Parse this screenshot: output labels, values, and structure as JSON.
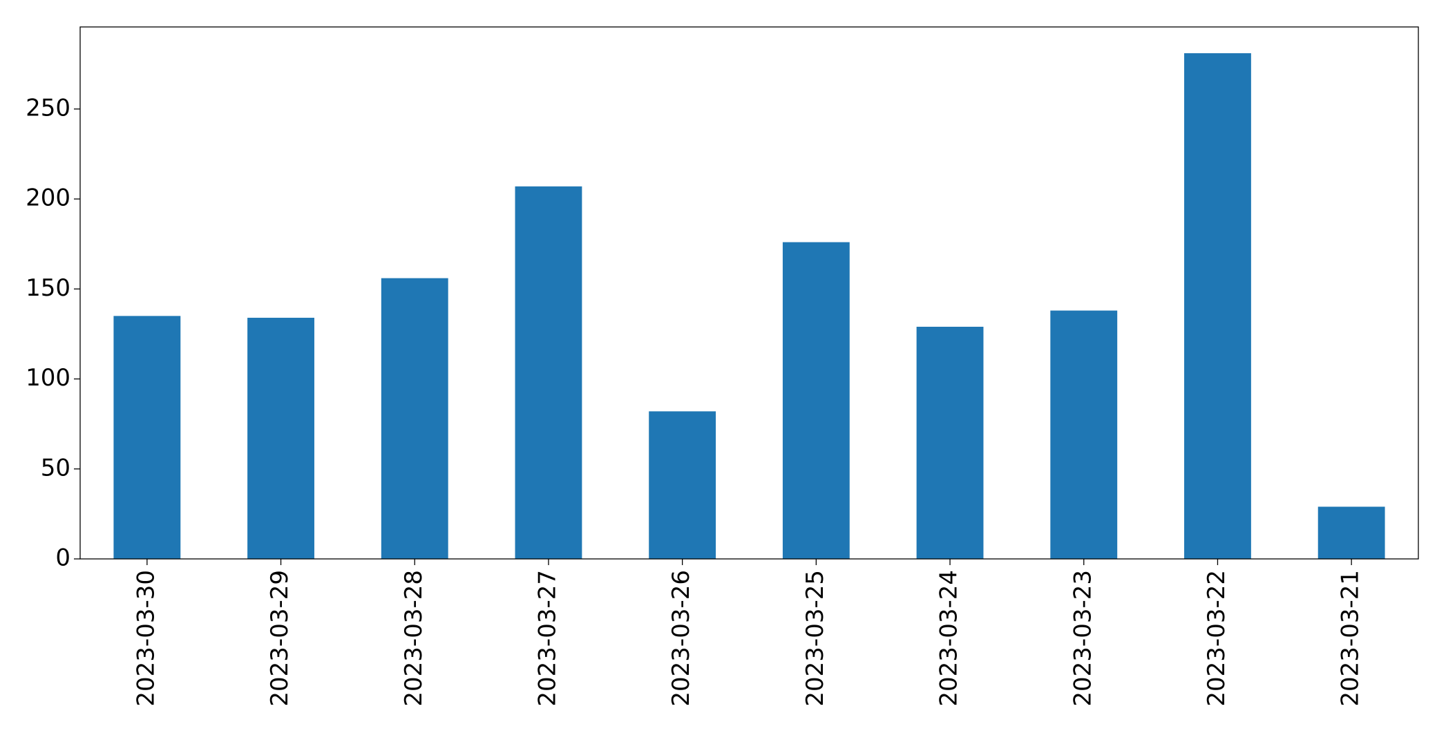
{
  "chart_data": {
    "type": "bar",
    "categories": [
      "2023-03-30",
      "2023-03-29",
      "2023-03-28",
      "2023-03-27",
      "2023-03-26",
      "2023-03-25",
      "2023-03-24",
      "2023-03-23",
      "2023-03-22",
      "2023-03-21"
    ],
    "values": [
      135,
      134,
      156,
      207,
      82,
      176,
      129,
      138,
      281,
      29
    ],
    "color": "#1f77b4",
    "ylim": [
      0,
      295.6
    ],
    "yticks": [
      0,
      50,
      100,
      150,
      200,
      250
    ],
    "grid": false
  }
}
